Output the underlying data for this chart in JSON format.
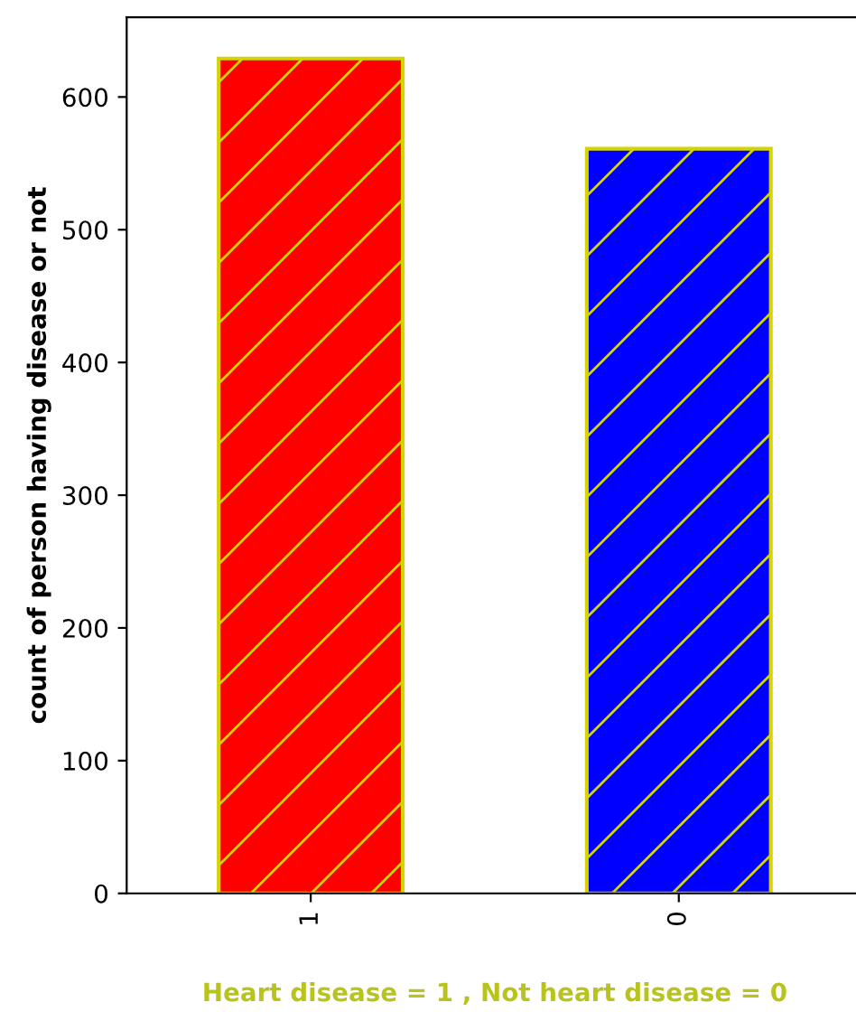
{
  "chart_data": {
    "type": "bar",
    "categories": [
      "1",
      "0"
    ],
    "values": [
      629,
      561
    ],
    "colors": [
      "#ff0000",
      "#0000ff"
    ],
    "xlabel": "Heart disease = 1 , Not heart disease = 0",
    "ylabel": "count of person having disease or not",
    "ylim": [
      0,
      660
    ],
    "yticks": [
      0,
      100,
      200,
      300,
      400,
      500,
      600
    ],
    "grid": false,
    "legend": false
  }
}
